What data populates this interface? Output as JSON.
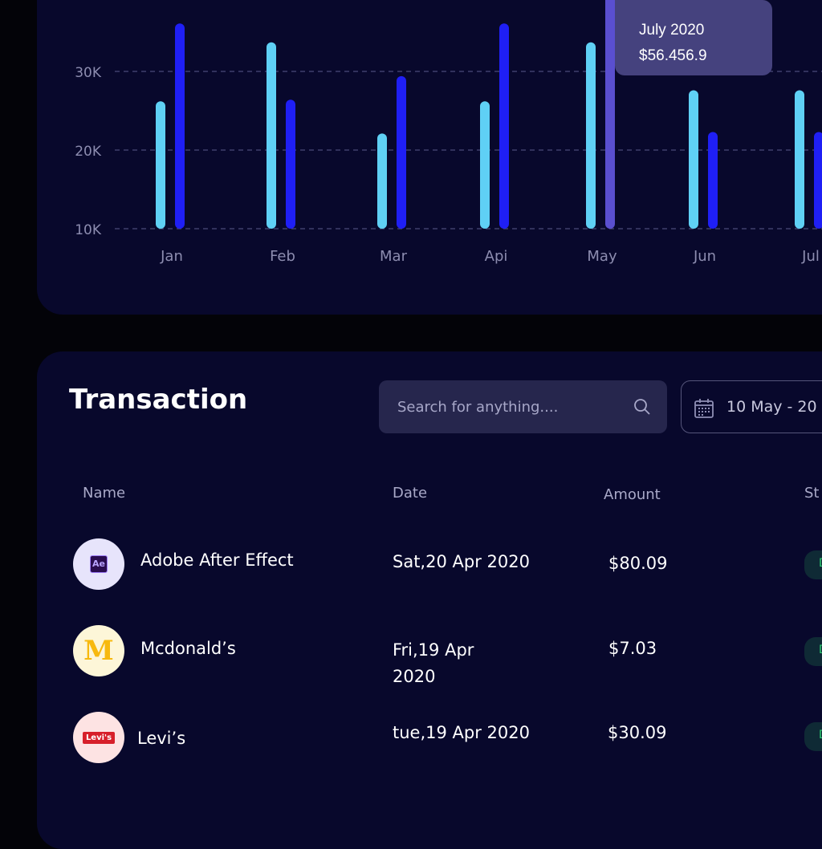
{
  "chart_data": {
    "type": "bar",
    "categories": [
      "Jan",
      "Feb",
      "Mar",
      "Api",
      "May",
      "Jun",
      "Jul"
    ],
    "series": [
      {
        "values": [
          26.2,
          33.7,
          22.1,
          26.2,
          33.7,
          27.6,
          27.6
        ],
        "color": "#5fd0f5"
      },
      {
        "values": [
          36.1,
          26.4,
          29.4,
          36.1,
          40,
          22.3,
          22.3
        ],
        "color": "#1f1ff5"
      }
    ],
    "highlight": {
      "category": "May",
      "series": 1,
      "color": "#5a4fd0"
    },
    "yticks": [
      "10K",
      "20K",
      "30K"
    ],
    "ytick_values": [
      10,
      20,
      30
    ],
    "ylim": [
      10,
      40
    ],
    "grid": true,
    "tooltip": {
      "title": "July 2020",
      "value": "$56.456.9"
    }
  },
  "transaction": {
    "title": "Transaction",
    "search_placeholder": "Search for anything....",
    "date_range": "10 May - 20",
    "columns": [
      "Name",
      "Date",
      "Amount",
      "St"
    ],
    "rows": [
      {
        "name": "Adobe After Effect",
        "date": "Sat,20 Apr 2020",
        "amount": "$80.09",
        "logo": "Ae",
        "status": "D"
      },
      {
        "name": "Mcdonald’s",
        "date": "Fri,19 Apr 2020",
        "amount": "$7.03",
        "logo": "M",
        "status": "D"
      },
      {
        "name": "Levi’s",
        "date": "tue,19 Apr 2020",
        "amount": "$30.09",
        "logo": "Levi's",
        "status": "D"
      }
    ]
  }
}
